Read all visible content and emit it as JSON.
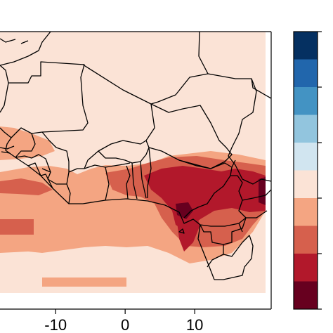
{
  "map": {
    "x_tick_labels": [
      "-10",
      "0",
      "10"
    ],
    "x_tick_values": [
      -10,
      0,
      10
    ],
    "x_range": [
      -18,
      21
    ],
    "y_range": [
      -2,
      36
    ]
  },
  "colorbar": {
    "levels": 10,
    "colors_top_to_bottom": [
      "#053061",
      "#2166ac",
      "#4393c3",
      "#92c5de",
      "#d1e5f0",
      "#fbe3d6",
      "#f4a582",
      "#d6604d",
      "#b2182b",
      "#67001f"
    ]
  },
  "colors": {
    "background_field": "#fbe3d6",
    "border": "#000000"
  }
}
